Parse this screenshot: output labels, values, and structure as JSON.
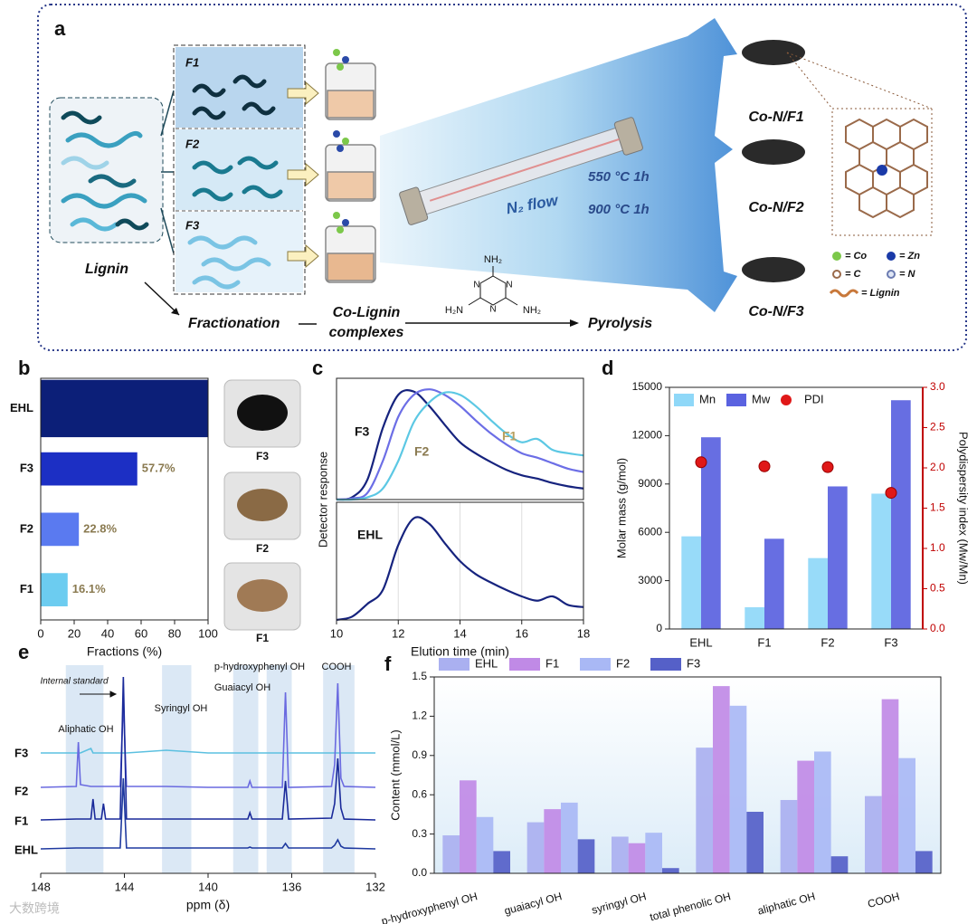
{
  "diagram": {
    "label": "a",
    "fractions": [
      "F1",
      "F2",
      "F3"
    ],
    "source": "Lignin",
    "fractionation": "Fractionation",
    "complex": [
      "Co-Lignin",
      "complexes"
    ],
    "pyrolysis": "Pyrolysis",
    "flow": "N₂ flow",
    "conditions": [
      "550 °C 1h",
      "900 °C 1h"
    ],
    "products": [
      "Co-N/F1",
      "Co-N/F2",
      "Co-N/F3"
    ],
    "melamine": [
      "NH₂",
      "N",
      "N",
      "N",
      "H₂N",
      "NH₂"
    ],
    "legend": [
      "= Co",
      "= Zn",
      "= C",
      "= N",
      "= Lignin"
    ]
  },
  "watermark": "大数跨境",
  "chart_data": [
    {
      "type": "bar",
      "orientation": "horizontal",
      "label": "b",
      "categories": [
        "EHL",
        "F3",
        "F2",
        "F1"
      ],
      "values": [
        100,
        57.7,
        22.8,
        16.1
      ],
      "value_labels": [
        null,
        "57.7%",
        "22.8%",
        "16.1%"
      ],
      "colors": [
        "#0c1f78",
        "#1c2fc4",
        "#5a7af0",
        "#6cccf0"
      ],
      "xlim": [
        0,
        100
      ],
      "xticks": [
        0,
        20,
        40,
        60,
        80,
        100
      ],
      "xlabel": "Fractions (%)",
      "images": [
        "F3",
        "F2",
        "F1"
      ]
    },
    {
      "type": "line",
      "label": "c",
      "ylabel": "Detector response",
      "x": [
        10,
        10.5,
        11,
        11.5,
        12,
        12.5,
        13,
        13.5,
        14,
        14.5,
        15,
        15.5,
        16,
        16.5,
        17,
        17.5,
        18
      ],
      "xlim": [
        10,
        18
      ],
      "ylim": [
        0,
        1.1
      ],
      "series": [
        {
          "name": "F3",
          "color": "#16237e",
          "values": [
            0,
            0.02,
            0.18,
            0.65,
            0.95,
            0.98,
            0.85,
            0.68,
            0.52,
            0.42,
            0.34,
            0.27,
            0.22,
            0.19,
            0.15,
            0.12,
            0.1
          ]
        },
        {
          "name": "F2",
          "color": "#6c6ee6",
          "values": [
            0,
            0.01,
            0.06,
            0.35,
            0.75,
            0.95,
            1.0,
            0.95,
            0.85,
            0.72,
            0.6,
            0.5,
            0.42,
            0.38,
            0.33,
            0.28,
            0.25
          ]
        },
        {
          "name": "F1",
          "color": "#5cc8e4",
          "values": [
            0,
            0,
            0.02,
            0.1,
            0.35,
            0.7,
            0.88,
            0.97,
            0.95,
            0.85,
            0.72,
            0.6,
            0.52,
            0.55,
            0.45,
            0.42,
            0.4
          ]
        }
      ]
    },
    {
      "type": "line",
      "x": [
        10,
        10.5,
        11,
        11.5,
        12,
        12.5,
        13,
        13.5,
        14,
        14.5,
        15,
        15.5,
        16,
        16.5,
        17,
        17.5,
        18
      ],
      "xlim": [
        10,
        18
      ],
      "ylim": [
        0,
        1.1
      ],
      "xticks": [
        10,
        12,
        14,
        16,
        18
      ],
      "grid": true,
      "xlabel": "Elution time (min)",
      "series": [
        {
          "name": "EHL",
          "color": "#16237e",
          "values": [
            0,
            0.03,
            0.15,
            0.28,
            0.7,
            0.95,
            0.9,
            0.72,
            0.55,
            0.43,
            0.35,
            0.28,
            0.22,
            0.18,
            0.22,
            0.14,
            0.12
          ]
        }
      ]
    },
    {
      "type": "bar",
      "label": "d",
      "categories": [
        "EHL",
        "F1",
        "F2",
        "F3"
      ],
      "ylim": [
        0,
        15000
      ],
      "yticks": [
        0,
        3000,
        6000,
        9000,
        12000,
        15000
      ],
      "ylabel": "Molar mass (g/mol)",
      "y2lim": [
        0,
        3
      ],
      "y2ticks": [
        {
          "value": 0,
          "label": "0.0"
        },
        0.5,
        {
          "value": 1,
          "label": "1.0"
        },
        1.5,
        {
          "value": 2,
          "label": "2.0"
        },
        2.5,
        {
          "value": 3,
          "label": "3.0"
        }
      ],
      "y2label": "Polydispersity index (Mw/Mn)",
      "y2color": "#c00000",
      "legend": "top-left",
      "series": [
        {
          "name": "Mn",
          "color": "#8fd8f8",
          "values": [
            5750,
            1350,
            4400,
            8400
          ]
        },
        {
          "name": "Mw",
          "color": "#5a62e0",
          "values": [
            11900,
            5600,
            8850,
            14200
          ]
        },
        {
          "name": "PDI",
          "color": "#e01818",
          "kind": "scatter",
          "axis": "y2",
          "values": [
            2.07,
            2.02,
            2.01,
            1.69
          ]
        }
      ]
    },
    {
      "type": "spectrum",
      "label": "e",
      "xlim": [
        148,
        132
      ],
      "xticks": [
        148,
        144,
        140,
        136,
        132
      ],
      "xlabel": "ppm (δ)",
      "ylim": [
        0,
        10
      ],
      "regions": [
        {
          "label": "Aliphatic OH",
          "range": [
            146.8,
            145.0
          ]
        },
        {
          "label": "Syringyl OH",
          "range": [
            142.2,
            140.8
          ]
        },
        {
          "label": "Guaiacyl OH",
          "range": [
            138.8,
            137.6
          ]
        },
        {
          "label": "p-hydroxyphenyl OH",
          "range": [
            137.2,
            136.0
          ]
        },
        {
          "label": "COOH",
          "range": [
            134.5,
            133.0
          ]
        }
      ],
      "annotation": "Internal standard",
      "x": [
        148,
        146.3,
        146.2,
        146.1,
        145.6,
        145.5,
        145.4,
        145.1,
        145.0,
        144.9,
        144.2,
        144.05,
        143.9,
        142,
        140,
        138.1,
        138.0,
        137.9,
        136.45,
        136.3,
        136.15,
        134.1,
        133.95,
        133.8,
        133.65,
        133.5,
        132
      ],
      "series": [
        {
          "name": "F3",
          "color": "#5cc0e0",
          "values": [
            0.1,
            0.1,
            0.1,
            0.1,
            0.6,
            0.1,
            0.1,
            0.1,
            0.1,
            0.1,
            0.1,
            0.1,
            0.1,
            0.4,
            0.1,
            0.1,
            0.1,
            0.1,
            0.1,
            0.1,
            0.1,
            0.1,
            0.1,
            0.1,
            0.1,
            0.1,
            0.1
          ]
        },
        {
          "name": "F2",
          "color": "#6a6ae0",
          "values": [
            0.5,
            0.6,
            5.5,
            0.8,
            0.6,
            0.6,
            0.6,
            0.6,
            0.6,
            0.6,
            0.6,
            10,
            0.6,
            0.6,
            0.5,
            0.5,
            1.2,
            0.5,
            0.5,
            11,
            0.5,
            0.6,
            3.0,
            12,
            1.5,
            0.6,
            0.5
          ]
        },
        {
          "name": "F1",
          "color": "#1a2a9a",
          "values": [
            0.2,
            0.3,
            0.3,
            0.3,
            0.3,
            2.5,
            0.3,
            0.3,
            2.0,
            0.3,
            0.3,
            16,
            0.3,
            0.3,
            0.3,
            0.3,
            1.0,
            0.3,
            0.3,
            4.5,
            0.3,
            0.4,
            2.0,
            7.0,
            1.5,
            0.3,
            0.2
          ]
        },
        {
          "name": "EHL",
          "color": "#1f3aa0",
          "values": [
            0.2,
            0.3,
            0.3,
            0.3,
            0.3,
            0.3,
            0.3,
            0.3,
            0.3,
            0.3,
            0.3,
            8,
            0.3,
            0.3,
            0.3,
            0.3,
            0.4,
            0.3,
            0.3,
            0.8,
            0.3,
            0.3,
            0.6,
            1.2,
            0.5,
            0.3,
            0.2
          ]
        }
      ]
    },
    {
      "type": "bar",
      "label": "f",
      "categories": [
        "p-hydroxyphenyl OH",
        "guaiacyl OH",
        "syringyl OH",
        "total phenolic OH",
        "aliphatic OH",
        "COOH"
      ],
      "ylim": [
        0,
        1.5
      ],
      "yticks": [
        {
          "value": 0,
          "label": "0.0"
        },
        0.3,
        0.6,
        0.9,
        1.2,
        1.5
      ],
      "ylabel": "Content (mmol/L)",
      "legend": "top",
      "series": [
        {
          "name": "EHL",
          "color": "#aab0f0",
          "values": [
            0.29,
            0.39,
            0.28,
            0.96,
            0.56,
            0.59
          ]
        },
        {
          "name": "F1",
          "color": "#c08ae6",
          "values": [
            0.71,
            0.49,
            0.23,
            1.43,
            0.86,
            1.33
          ]
        },
        {
          "name": "F2",
          "color": "#a9b8f5",
          "values": [
            0.43,
            0.54,
            0.31,
            1.28,
            0.93,
            0.88
          ]
        },
        {
          "name": "F3",
          "color": "#5560c8",
          "values": [
            0.17,
            0.26,
            0.04,
            0.47,
            0.13,
            0.17
          ]
        }
      ]
    }
  ]
}
